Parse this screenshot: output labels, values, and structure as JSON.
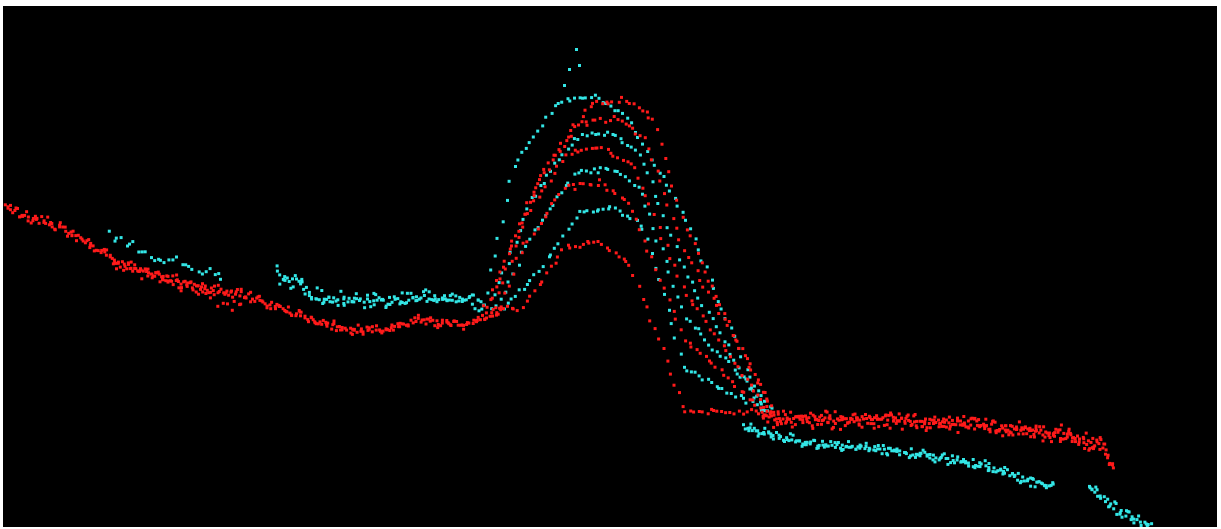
{
  "scene": {
    "background_color": "#000000",
    "border_color": "#ffffff",
    "series": [
      {
        "color": "#ff1a1a"
      },
      {
        "color": "#33e6e6"
      }
    ]
  }
}
